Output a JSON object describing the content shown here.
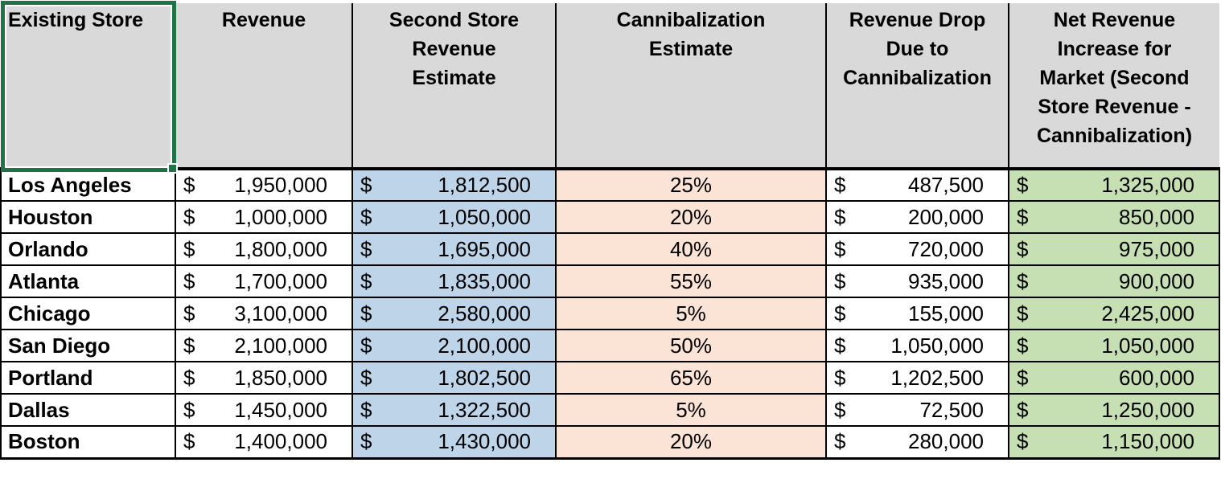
{
  "table": {
    "currency_symbol": "$",
    "selected_cell": "Existing Store",
    "columns": [
      {
        "id": "store",
        "label": "Existing Store"
      },
      {
        "id": "revenue",
        "label": "Revenue"
      },
      {
        "id": "second",
        "label": "Second Store\nRevenue\nEstimate"
      },
      {
        "id": "cannibal",
        "label": "Cannibalization\nEstimate"
      },
      {
        "id": "drop",
        "label": "Revenue Drop\nDue to\nCannibalization"
      },
      {
        "id": "net",
        "label": "Net Revenue\nIncrease for\nMarket (Second\nStore Revenue -\nCannibalization)"
      }
    ],
    "rows": [
      {
        "store": "Los Angeles",
        "revenue": "1,950,000",
        "second": "1,812,500",
        "cannibal": "25%",
        "drop": "487,500",
        "net": "1,325,000"
      },
      {
        "store": "Houston",
        "revenue": "1,000,000",
        "second": "1,050,000",
        "cannibal": "20%",
        "drop": "200,000",
        "net": "850,000"
      },
      {
        "store": "Orlando",
        "revenue": "1,800,000",
        "second": "1,695,000",
        "cannibal": "40%",
        "drop": "720,000",
        "net": "975,000"
      },
      {
        "store": "Atlanta",
        "revenue": "1,700,000",
        "second": "1,835,000",
        "cannibal": "55%",
        "drop": "935,000",
        "net": "900,000"
      },
      {
        "store": "Chicago",
        "revenue": "3,100,000",
        "second": "2,580,000",
        "cannibal": "5%",
        "drop": "155,000",
        "net": "2,425,000"
      },
      {
        "store": "San Diego",
        "revenue": "2,100,000",
        "second": "2,100,000",
        "cannibal": "50%",
        "drop": "1,050,000",
        "net": "1,050,000"
      },
      {
        "store": "Portland",
        "revenue": "1,850,000",
        "second": "1,802,500",
        "cannibal": "65%",
        "drop": "1,202,500",
        "net": "600,000"
      },
      {
        "store": "Dallas",
        "revenue": "1,450,000",
        "second": "1,322,500",
        "cannibal": "5%",
        "drop": "72,500",
        "net": "1,250,000"
      },
      {
        "store": "Boston",
        "revenue": "1,400,000",
        "second": "1,430,000",
        "cannibal": "20%",
        "drop": "280,000",
        "net": "1,150,000"
      }
    ],
    "colors": {
      "header_fill": "#D9D9D9",
      "second_store_fill": "#BDD4E9",
      "cannibalization_fill": "#FBE3D5",
      "net_revenue_fill": "#C6E0B4",
      "grid_border": "#000000",
      "selection_border": "#217346"
    }
  }
}
